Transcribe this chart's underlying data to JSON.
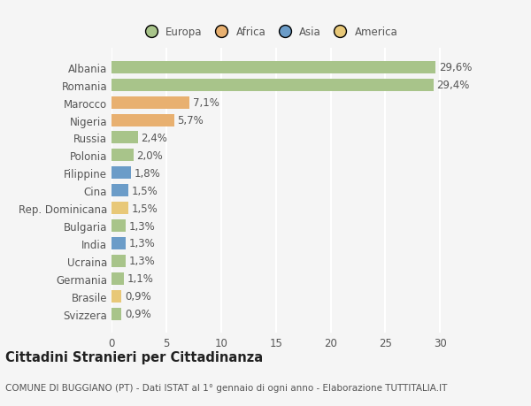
{
  "countries": [
    "Albania",
    "Romania",
    "Marocco",
    "Nigeria",
    "Russia",
    "Polonia",
    "Filippine",
    "Cina",
    "Rep. Dominicana",
    "Bulgaria",
    "India",
    "Ucraina",
    "Germania",
    "Brasile",
    "Svizzera"
  ],
  "values": [
    29.6,
    29.4,
    7.1,
    5.7,
    2.4,
    2.0,
    1.8,
    1.5,
    1.5,
    1.3,
    1.3,
    1.3,
    1.1,
    0.9,
    0.9
  ],
  "labels": [
    "29,6%",
    "29,4%",
    "7,1%",
    "5,7%",
    "2,4%",
    "2,0%",
    "1,8%",
    "1,5%",
    "1,5%",
    "1,3%",
    "1,3%",
    "1,3%",
    "1,1%",
    "0,9%",
    "0,9%"
  ],
  "continents": [
    "Europa",
    "Europa",
    "Africa",
    "Africa",
    "Europa",
    "Europa",
    "Asia",
    "Asia",
    "America",
    "Europa",
    "Asia",
    "Europa",
    "Europa",
    "America",
    "Europa"
  ],
  "continent_colors": {
    "Europa": "#a8c48a",
    "Africa": "#e8b070",
    "Asia": "#6b9cc8",
    "America": "#e8c878"
  },
  "legend_order": [
    "Europa",
    "Africa",
    "Asia",
    "America"
  ],
  "legend_colors": [
    "#a8c48a",
    "#e8b070",
    "#6b9cc8",
    "#e8c878"
  ],
  "xlim": [
    0,
    32
  ],
  "xticks": [
    0,
    5,
    10,
    15,
    20,
    25,
    30
  ],
  "title": "Cittadini Stranieri per Cittadinanza",
  "subtitle": "COMUNE DI BUGGIANO (PT) - Dati ISTAT al 1° gennaio di ogni anno - Elaborazione TUTTITALIA.IT",
  "background_color": "#f5f5f5",
  "grid_color": "#ffffff",
  "bar_height": 0.7,
  "label_fontsize": 8.5,
  "tick_fontsize": 8.5,
  "title_fontsize": 10.5,
  "subtitle_fontsize": 7.5
}
